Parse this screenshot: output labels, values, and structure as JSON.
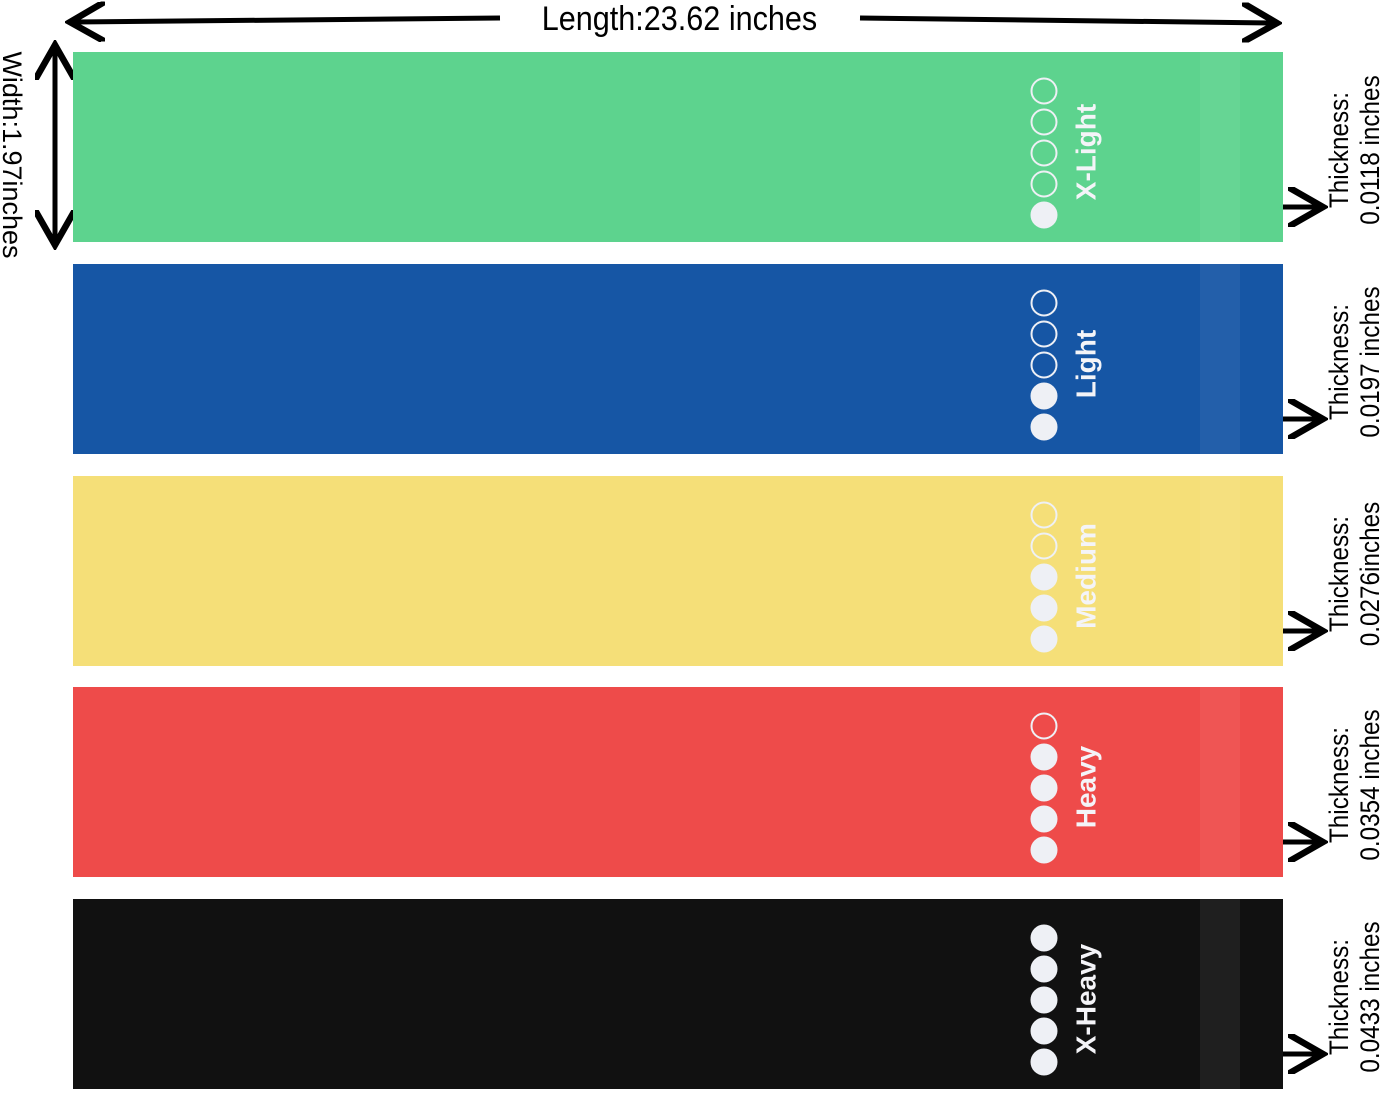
{
  "length_label": "Length:23.62 inches",
  "width_label": "Width:1.97inches",
  "bands": [
    {
      "label": "X-Light",
      "level": 1,
      "color": "#5dd38e",
      "thickness_caption": "Thickness:",
      "thickness": "0.0118 inches"
    },
    {
      "label": "Light",
      "level": 2,
      "color": "#1656a5",
      "thickness_caption": "Thickness:",
      "thickness": "0.0197 inches"
    },
    {
      "label": "Medium",
      "level": 3,
      "color": "#f5df78",
      "thickness_caption": "Thickness:",
      "thickness": "0.0276inches"
    },
    {
      "label": "Heavy",
      "level": 4,
      "color": "#ee4b4a",
      "thickness_caption": "Thickness:",
      "thickness": "0.0354 inches"
    },
    {
      "label": "X-Heavy",
      "level": 5,
      "color": "#111111",
      "thickness_caption": "Thickness:",
      "thickness": "0.0433 inches"
    }
  ]
}
